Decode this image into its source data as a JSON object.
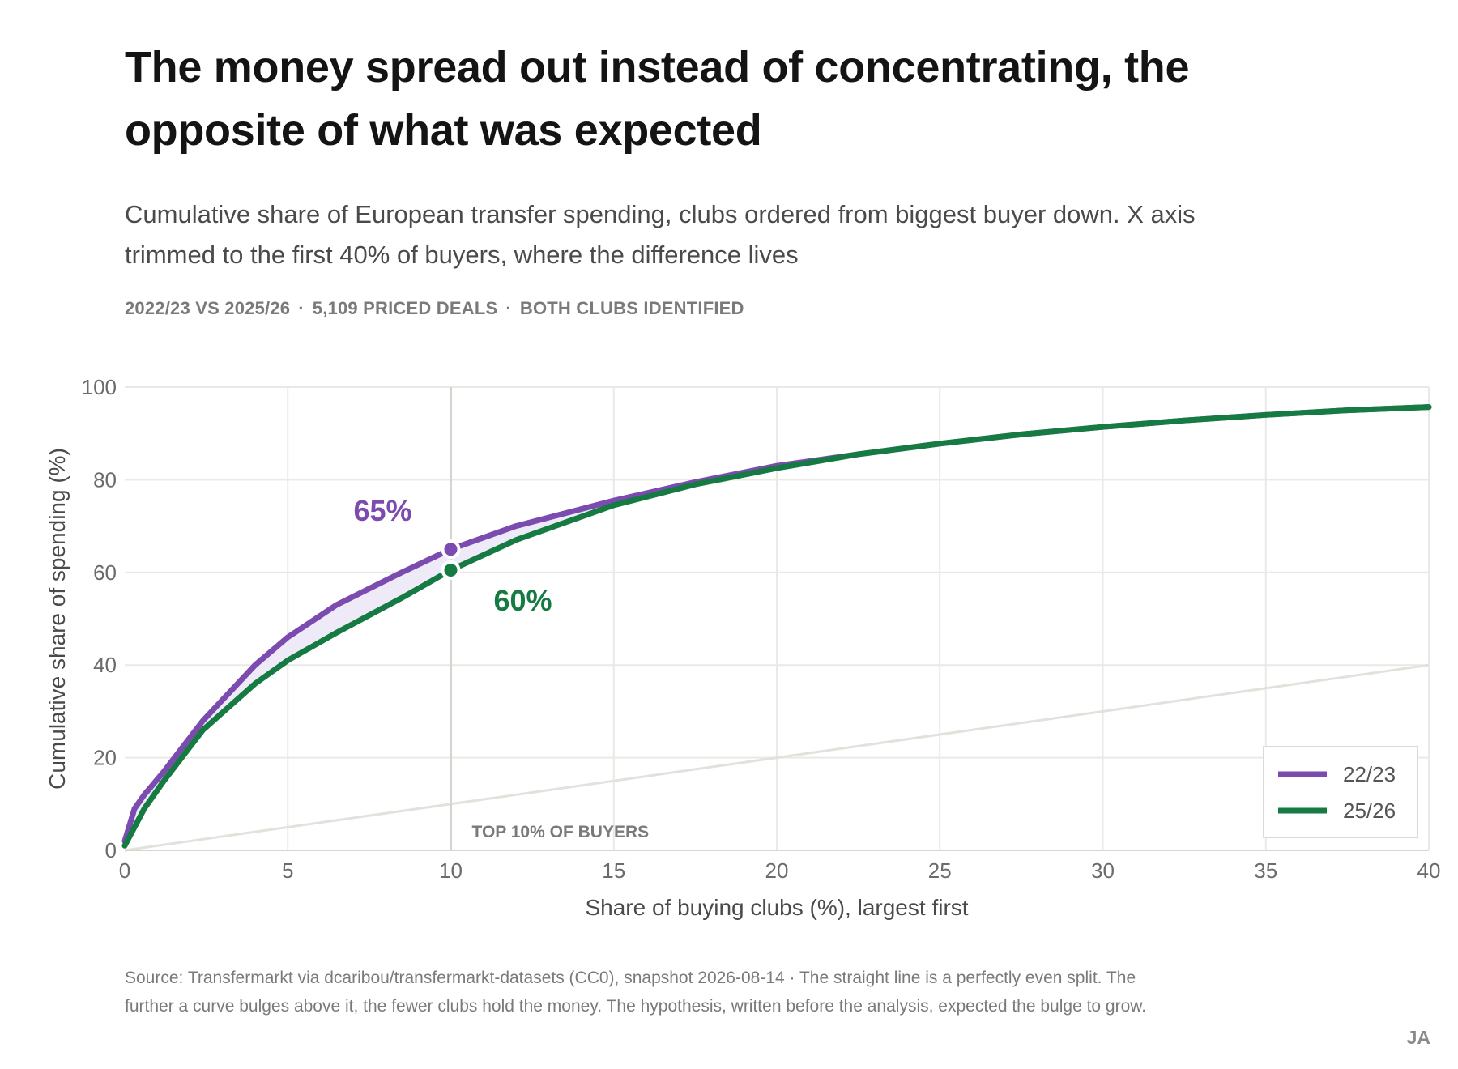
{
  "header": {
    "title": "The money spread out instead of concentrating, the opposite of what was expected",
    "subtitle": "Cumulative share of European transfer spending, clubs ordered from biggest buyer down. X axis trimmed to the first 40% of buyers, where the difference lives",
    "meta": [
      "2022/23 VS 2025/26",
      "5,109 PRICED DEALS",
      "BOTH CLUBS IDENTIFIED"
    ]
  },
  "chart_data": {
    "type": "line",
    "xlabel": "Share of buying clubs (%), largest first",
    "ylabel": "Cumulative share of spending (%)",
    "xlim": [
      0,
      40
    ],
    "ylim": [
      0,
      100
    ],
    "xticks": [
      "0",
      "5",
      "10",
      "15",
      "20",
      "25",
      "30",
      "35",
      "40"
    ],
    "yticks": [
      "0",
      "20",
      "40",
      "60",
      "80",
      "100"
    ],
    "grid": true,
    "legend_position": "bottom-right",
    "equality_line": {
      "x": [
        0,
        40
      ],
      "y": [
        0,
        40
      ],
      "color": "#e3e1dc"
    },
    "series": [
      {
        "name": "22/23",
        "color": "#7b4bb0",
        "x": [
          0,
          0.3,
          0.6,
          1.2,
          2.4,
          4,
          5,
          6.5,
          8.5,
          10,
          12,
          15,
          17.5,
          20,
          22.5,
          25,
          27.5,
          30,
          32.5,
          35,
          37.5,
          40
        ],
        "y": [
          2,
          9,
          12,
          17,
          28,
          40,
          46,
          53,
          60,
          65,
          70,
          75.5,
          79.5,
          83,
          85.5,
          87.8,
          89.8,
          91.4,
          92.8,
          94,
          95,
          95.7
        ]
      },
      {
        "name": "25/26",
        "color": "#167a43",
        "x": [
          0,
          0.3,
          0.6,
          1.2,
          2.4,
          4,
          5,
          6.5,
          8.5,
          10,
          12,
          15,
          17.5,
          20,
          22.5,
          25,
          27.5,
          30,
          32.5,
          35,
          37.5,
          40
        ],
        "y": [
          1,
          5,
          9,
          15,
          26,
          36,
          41,
          47,
          54.5,
          60.5,
          67,
          74.5,
          79,
          82.5,
          85.5,
          87.8,
          89.8,
          91.4,
          92.8,
          94,
          95,
          95.7
        ]
      }
    ],
    "marker_line": {
      "x": 10,
      "label": "TOP 10% OF BUYERS"
    },
    "annotations": [
      {
        "series": "22/23",
        "x": 10,
        "y": 65,
        "label": "65%"
      },
      {
        "series": "25/26",
        "x": 10,
        "y": 60.5,
        "label": "60%"
      }
    ],
    "shaded_gap_color": "#efeaf7"
  },
  "footer": {
    "source": "Source: Transfermarkt via dcaribou/transfermarkt-datasets (CC0), snapshot 2026-08-14  ·  The straight line is a perfectly even split. The further a curve bulges above it, the fewer clubs hold the money. The hypothesis, written before the analysis, expected the bulge to grow.",
    "signature": "JA"
  }
}
